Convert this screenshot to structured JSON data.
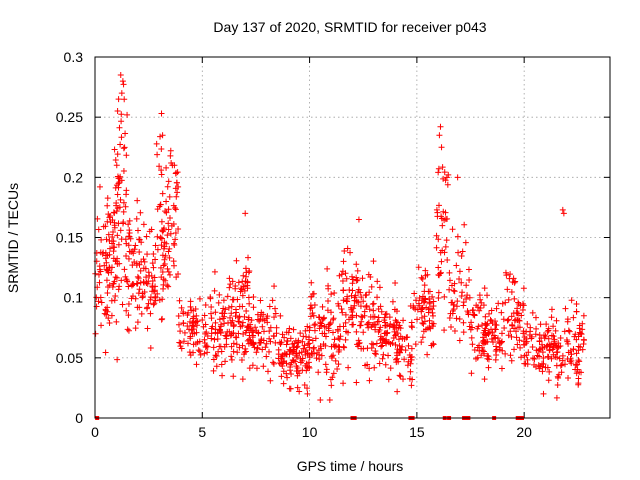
{
  "chart_data": {
    "type": "scatter",
    "title": "Day 137 of 2020, SRMTID for receiver p043",
    "xlabel": "GPS time / hours",
    "ylabel": "SRMTID / TECUs",
    "xlim": [
      0,
      24
    ],
    "ylim": [
      0,
      0.3
    ],
    "x_tick_labels": [
      "0",
      "5",
      "10",
      "15",
      "20"
    ],
    "y_tick_labels": [
      "0",
      "0.05",
      "0.1",
      "0.15",
      "0.2",
      "0.25",
      "0.3"
    ],
    "grid": true,
    "marker": "plus",
    "color": "#ff0000",
    "clusters": [
      {
        "x_range": [
          0.0,
          0.7
        ],
        "y_center": 0.12,
        "y_spread": 0.035,
        "count": 45
      },
      {
        "x_range": [
          0.5,
          1.0
        ],
        "y_center": 0.13,
        "y_spread": 0.04,
        "count": 40
      },
      {
        "x_range": [
          0.9,
          1.5
        ],
        "y_center": 0.17,
        "y_spread": 0.055,
        "count": 70
      },
      {
        "x_range": [
          1.5,
          2.2
        ],
        "y_center": 0.13,
        "y_spread": 0.035,
        "count": 55
      },
      {
        "x_range": [
          2.2,
          2.8
        ],
        "y_center": 0.12,
        "y_spread": 0.035,
        "count": 45
      },
      {
        "x_range": [
          2.8,
          3.4
        ],
        "y_center": 0.15,
        "y_spread": 0.045,
        "count": 55
      },
      {
        "x_range": [
          3.4,
          3.9
        ],
        "y_center": 0.16,
        "y_spread": 0.035,
        "count": 40
      },
      {
        "x_range": [
          3.9,
          5.5
        ],
        "y_center": 0.07,
        "y_spread": 0.015,
        "count": 80
      },
      {
        "x_range": [
          5.5,
          7.0
        ],
        "y_center": 0.08,
        "y_spread": 0.025,
        "count": 110
      },
      {
        "x_range": [
          6.8,
          7.2
        ],
        "y_center": 0.12,
        "y_spread": 0.02,
        "count": 20
      },
      {
        "x_range": [
          7.0,
          8.5
        ],
        "y_center": 0.07,
        "y_spread": 0.02,
        "count": 90
      },
      {
        "x_range": [
          8.5,
          10.0
        ],
        "y_center": 0.05,
        "y_spread": 0.017,
        "count": 110
      },
      {
        "x_range": [
          10.0,
          11.5
        ],
        "y_center": 0.07,
        "y_spread": 0.025,
        "count": 100
      },
      {
        "x_range": [
          11.5,
          13.0
        ],
        "y_center": 0.09,
        "y_spread": 0.03,
        "count": 110
      },
      {
        "x_range": [
          13.0,
          14.0
        ],
        "y_center": 0.07,
        "y_spread": 0.02,
        "count": 70
      },
      {
        "x_range": [
          14.0,
          14.8
        ],
        "y_center": 0.06,
        "y_spread": 0.02,
        "count": 55
      },
      {
        "x_range": [
          14.8,
          15.8
        ],
        "y_center": 0.09,
        "y_spread": 0.02,
        "count": 65
      },
      {
        "x_range": [
          15.9,
          16.5
        ],
        "y_center": 0.17,
        "y_spread": 0.04,
        "count": 40
      },
      {
        "x_range": [
          16.5,
          17.5
        ],
        "y_center": 0.11,
        "y_spread": 0.03,
        "count": 50
      },
      {
        "x_range": [
          17.5,
          19.0
        ],
        "y_center": 0.07,
        "y_spread": 0.02,
        "count": 100
      },
      {
        "x_range": [
          19.0,
          20.0
        ],
        "y_center": 0.08,
        "y_spread": 0.025,
        "count": 60
      },
      {
        "x_range": [
          20.0,
          21.5
        ],
        "y_center": 0.06,
        "y_spread": 0.015,
        "count": 90
      },
      {
        "x_range": [
          21.5,
          22.8
        ],
        "y_center": 0.06,
        "y_spread": 0.02,
        "count": 80
      }
    ],
    "highlight_points": [
      {
        "x": 1.2,
        "y": 0.285
      },
      {
        "x": 1.3,
        "y": 0.28
      },
      {
        "x": 1.25,
        "y": 0.27
      },
      {
        "x": 1.1,
        "y": 0.265
      },
      {
        "x": 3.1,
        "y": 0.253
      },
      {
        "x": 3.15,
        "y": 0.235
      },
      {
        "x": 16.1,
        "y": 0.242
      },
      {
        "x": 16.05,
        "y": 0.235
      },
      {
        "x": 16.15,
        "y": 0.225
      },
      {
        "x": 16.9,
        "y": 0.2
      },
      {
        "x": 3.7,
        "y": 0.21
      },
      {
        "x": 7.0,
        "y": 0.17
      },
      {
        "x": 12.3,
        "y": 0.165
      },
      {
        "x": 21.8,
        "y": 0.173
      },
      {
        "x": 21.85,
        "y": 0.17
      },
      {
        "x": 9.9,
        "y": 0.02
      },
      {
        "x": 10.5,
        "y": 0.015
      },
      {
        "x": 20.9,
        "y": 0.02
      }
    ],
    "zero_points": [
      0.1,
      12.0,
      12.1,
      14.7,
      14.8,
      16.3,
      16.5,
      17.2,
      17.3,
      17.4,
      18.6,
      19.7,
      19.8,
      19.9
    ]
  }
}
